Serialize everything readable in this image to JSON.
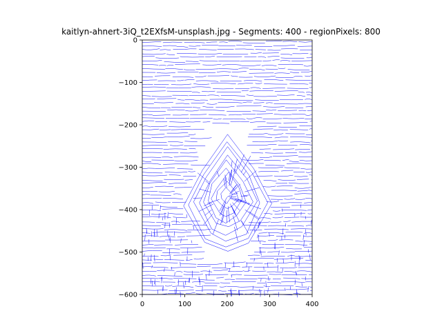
{
  "chart_data": {
    "type": "line",
    "title": "kaitlyn-ahnert-3iQ_t2EXfsM-unsplash.jpg - Segments: 400 - regionPixels: 800",
    "xlabel": "",
    "ylabel": "",
    "xlim": [
      0,
      400
    ],
    "ylim": [
      -600,
      0
    ],
    "xticks": [
      0,
      100,
      200,
      300,
      400
    ],
    "yticks": [
      0,
      -100,
      -200,
      -300,
      -400,
      -500,
      -600
    ],
    "grid": false,
    "series_color": "#0000ff",
    "series": [
      {
        "segments": 400
      }
    ]
  }
}
